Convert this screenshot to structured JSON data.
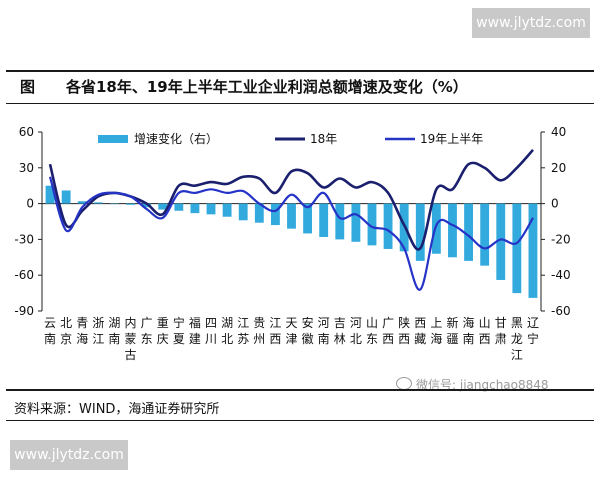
{
  "watermark": {
    "text": "www.jlytdz.com"
  },
  "title": {
    "fig_label": "图",
    "text": "各省18年、19年上半年工业企业利润总额增速及变化（%）"
  },
  "source": {
    "text": "资料来源：WIND，海通证券研究所"
  },
  "wechat": {
    "text": "微信号: jiangchao8848"
  },
  "colors": {
    "bar": "#33aadd",
    "line18": "#1a1f6e",
    "line19": "#2533c7",
    "rule": "#1a1a1a"
  },
  "chart_data": {
    "type": "bar+line",
    "categories": [
      [
        "云",
        "南"
      ],
      [
        "北",
        "京"
      ],
      [
        "青",
        "海"
      ],
      [
        "浙",
        "江"
      ],
      [
        "湖",
        "南"
      ],
      [
        "内",
        "蒙",
        "古"
      ],
      [
        "广",
        "东"
      ],
      [
        "重",
        "庆"
      ],
      [
        "宁",
        "夏"
      ],
      [
        "福",
        "建"
      ],
      [
        "四",
        "川"
      ],
      [
        "湖",
        "北"
      ],
      [
        "江",
        "苏"
      ],
      [
        "贵",
        "州"
      ],
      [
        "江",
        "西"
      ],
      [
        "天",
        "津"
      ],
      [
        "安",
        "徽"
      ],
      [
        "河",
        "南"
      ],
      [
        "吉",
        "林"
      ],
      [
        "河",
        "北"
      ],
      [
        "山",
        "东"
      ],
      [
        "广",
        "西"
      ],
      [
        "陕",
        "西"
      ],
      [
        "西",
        "藏"
      ],
      [
        "上",
        "海"
      ],
      [
        "新",
        "疆"
      ],
      [
        "海",
        "南"
      ],
      [
        "山",
        "西"
      ],
      [
        "甘",
        "肃"
      ],
      [
        "黑",
        "龙",
        "江"
      ],
      [
        "辽",
        "宁"
      ]
    ],
    "left_axis": {
      "min": -90,
      "max": 60,
      "ticks": [
        60,
        30,
        0,
        -30,
        -60,
        -90
      ]
    },
    "right_axis": {
      "min": -60,
      "max": 40,
      "ticks": [
        40,
        20,
        0,
        -20,
        -40,
        -60
      ]
    },
    "series": [
      {
        "name": "增速变化（右）",
        "kind": "bar",
        "axis": "left",
        "values": [
          15,
          11,
          2,
          1,
          0,
          -1,
          -3,
          -5,
          -6,
          -8,
          -9,
          -11,
          -14,
          -16,
          -18,
          -21,
          -25,
          -28,
          -30,
          -32,
          -35,
          -38,
          -40,
          -48,
          -42,
          -45,
          -48,
          -52,
          -64,
          -75,
          -79
        ]
      },
      {
        "name": "18年",
        "kind": "line",
        "axis": "right",
        "values": [
          22,
          -12,
          -4,
          4,
          6,
          4,
          0,
          -6,
          10,
          10,
          12,
          11,
          15,
          14,
          6,
          18,
          17,
          9,
          14,
          9,
          12,
          6,
          -12,
          -25,
          8,
          8,
          22,
          20,
          13,
          20,
          30
        ]
      },
      {
        "name": "19年上半年",
        "kind": "line",
        "axis": "right",
        "values": [
          15,
          -15,
          -2,
          5,
          6,
          4,
          -3,
          -8,
          6,
          6,
          8,
          6,
          7,
          0,
          -4,
          5,
          -2,
          6,
          -8,
          -6,
          -13,
          -15,
          -25,
          -48,
          -12,
          -12,
          -18,
          -25,
          -20,
          -22,
          -8
        ]
      }
    ],
    "legend": [
      "增速变化（右）",
      "18年",
      "19年上半年"
    ]
  }
}
